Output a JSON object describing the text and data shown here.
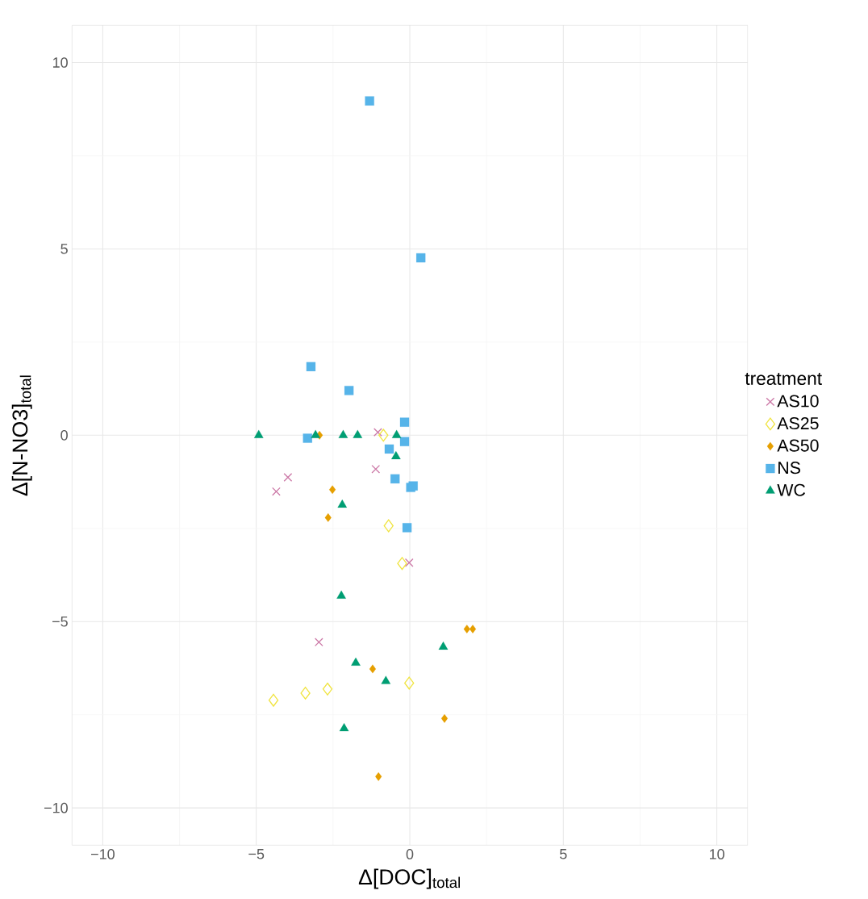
{
  "chart_data": {
    "type": "scatter",
    "xlabel": "Δ[DOC]$_{total}$",
    "ylabel": "Δ[N-NO3]$_{total}$",
    "legend_title": "treatment",
    "xlim": [
      -11,
      11
    ],
    "ylim": [
      -11,
      11
    ],
    "xticks": [
      {
        "value": -10,
        "label": "−10"
      },
      {
        "value": -5,
        "label": "−5"
      },
      0,
      5,
      10
    ],
    "yticks": [
      {
        "value": -10,
        "label": "−10"
      },
      {
        "value": -5,
        "label": "−5"
      },
      0,
      5,
      10
    ],
    "grid": true,
    "legend": "right",
    "series": [
      {
        "name": "AS10",
        "color": "#cc79a7",
        "marker": "cross",
        "x": [
          -1.04,
          -1.11,
          -3.97,
          -4.35,
          -0.02,
          -2.96
        ],
        "values": [
          0.08,
          -0.91,
          -1.13,
          -1.51,
          -3.42,
          -5.55
        ]
      },
      {
        "name": "AS25",
        "color": "#f0e442",
        "marker": "diamond",
        "x": [
          -0.86,
          -0.69,
          -0.25,
          -0.02,
          -2.68,
          -3.4,
          -4.44
        ],
        "values": [
          0,
          -2.43,
          -3.44,
          -6.65,
          -6.81,
          -6.92,
          -7.11
        ]
      },
      {
        "name": "AS50",
        "color": "#e69f00",
        "marker": "diamond",
        "x": [
          -2.94,
          -2.52,
          -2.66,
          1.86,
          2.05,
          -1.21,
          1.13,
          -1.02
        ],
        "values": [
          0,
          -1.46,
          -2.21,
          -5.2,
          -5.2,
          -6.27,
          -7.6,
          -9.16
        ]
      },
      {
        "name": "NS",
        "color": "#56b4e9",
        "marker": "square",
        "x": [
          -1.31,
          0.36,
          -3.22,
          -1.98,
          -3.33,
          -0.17,
          -0.17,
          -0.67,
          -0.48,
          0.03,
          0.11,
          -0.09
        ],
        "values": [
          8.97,
          4.76,
          1.84,
          1.2,
          -0.08,
          0.35,
          -0.17,
          -0.37,
          -1.17,
          -1.4,
          -1.36,
          -2.48
        ]
      },
      {
        "name": "WC",
        "color": "#009e73",
        "marker": "triangle",
        "x": [
          -4.92,
          -3.07,
          -2.17,
          -1.7,
          -0.43,
          -0.45,
          -2.2,
          -2.23,
          -1.76,
          -0.78,
          1.09,
          -2.14
        ],
        "values": [
          0,
          0,
          0,
          0,
          0,
          -0.57,
          -1.87,
          -4.31,
          -6.11,
          -6.6,
          -5.68,
          -7.87
        ]
      }
    ]
  }
}
